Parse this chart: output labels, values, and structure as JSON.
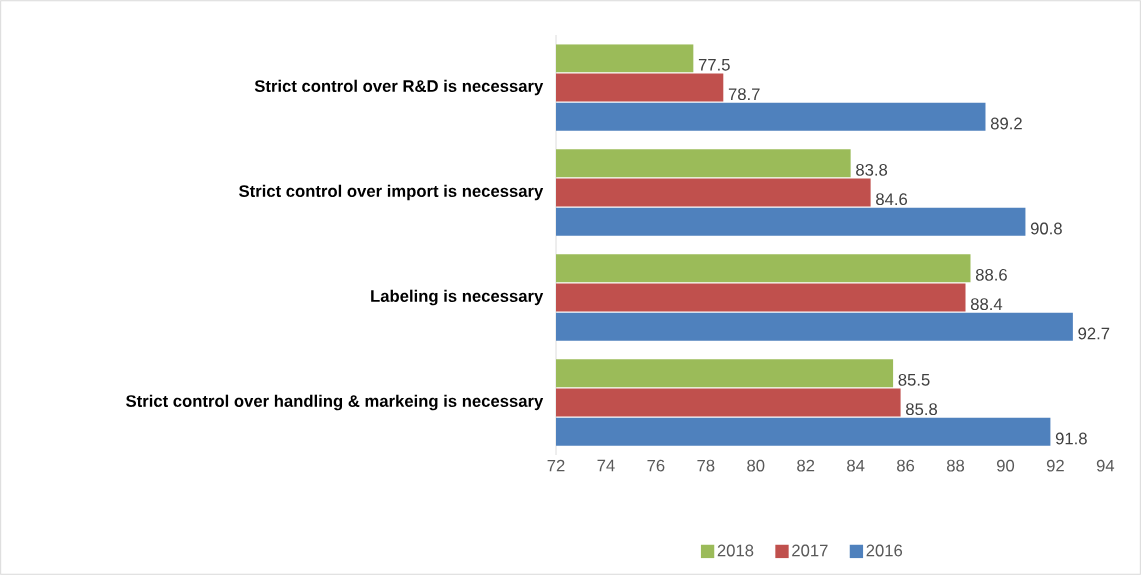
{
  "chart_data": {
    "type": "bar",
    "orientation": "horizontal",
    "categories": [
      "Strict control over R&D is necessary",
      "Strict control over import is necessary",
      "Labeling is necessary",
      "Strict control over handling & markeing is necessary"
    ],
    "series": [
      {
        "name": "2018",
        "color": "#9bbb59",
        "values": [
          77.5,
          83.8,
          88.6,
          85.5
        ]
      },
      {
        "name": "2017",
        "color": "#c0504d",
        "values": [
          78.7,
          84.6,
          88.4,
          85.8
        ]
      },
      {
        "name": "2016",
        "color": "#4f81bd",
        "values": [
          89.2,
          90.8,
          92.7,
          91.8
        ]
      }
    ],
    "xlim": [
      72,
      94
    ],
    "xticks": [
      72,
      74,
      76,
      78,
      80,
      82,
      84,
      86,
      88,
      90,
      92,
      94
    ],
    "data_labels": true,
    "legend": "bottom"
  }
}
